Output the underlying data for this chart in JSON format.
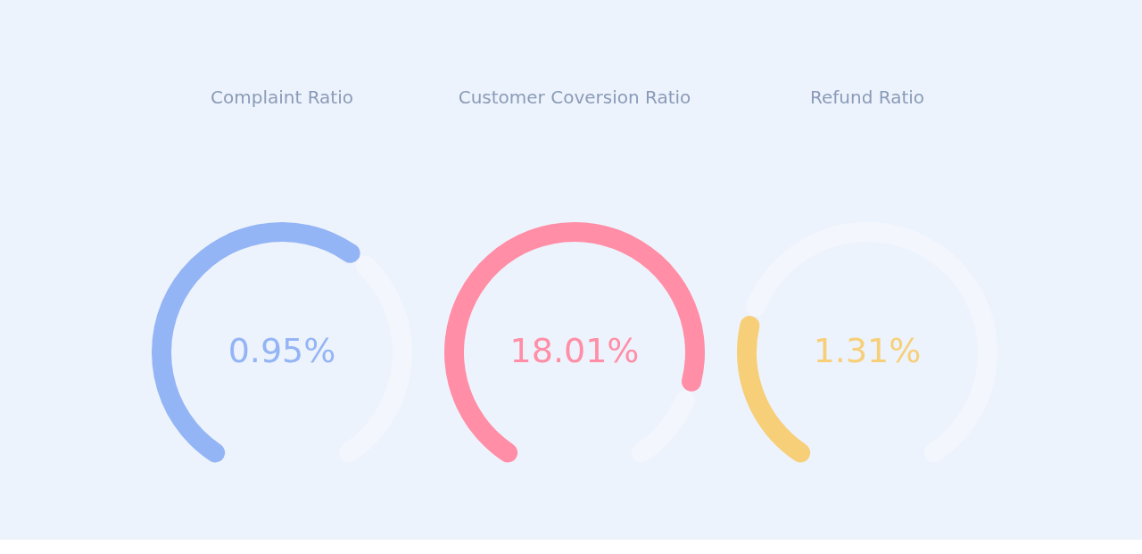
{
  "chart_data": [
    {
      "type": "donut",
      "title": "Complaint Ratio",
      "categories": [
        null,
        null
      ],
      "values": [
        63,
        37
      ],
      "colors": [
        "#94b5f5",
        "#f3f6fc"
      ],
      "annotations": [
        "0.95%"
      ]
    },
    {
      "type": "donut",
      "title": "Customer Coversion Ratio",
      "categories": [
        null,
        null
      ],
      "values": [
        86,
        14
      ],
      "colors": [
        "#ff8ea6",
        "#f3f6fc"
      ],
      "annotations": [
        "18.01%"
      ]
    },
    {
      "type": "donut",
      "title": "Refund Ratio",
      "categories": [
        null,
        null
      ],
      "values": [
        26,
        74
      ],
      "colors": [
        "#f7cf78",
        "#f3f6fc"
      ],
      "annotations": [
        "1.31%"
      ]
    }
  ]
}
